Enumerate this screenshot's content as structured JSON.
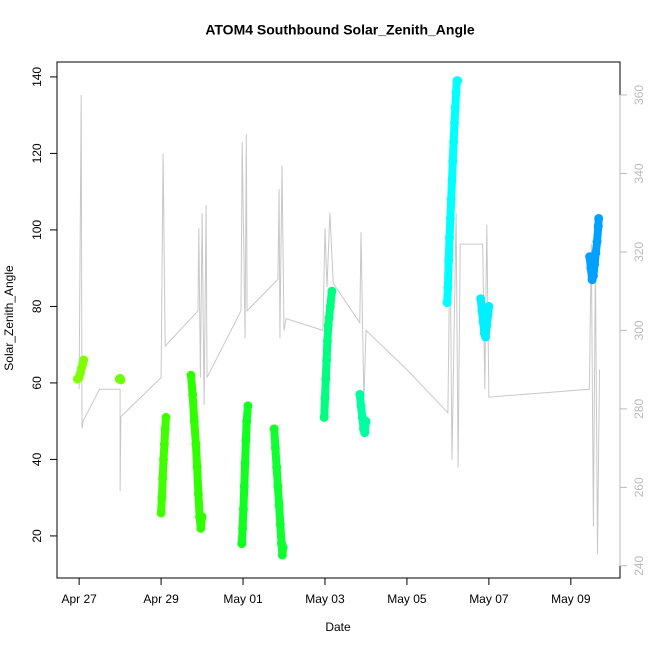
{
  "chart_data": {
    "type": "scatter",
    "title": "ATOM4 Southbound Solar_Zenith_Angle",
    "x_label": "Date",
    "y_label": "Solar_Zenith_Angle",
    "xlim": [
      -0.54,
      13.2
    ],
    "ylim": [
      9.0,
      143.9
    ],
    "y2lim": [
      236.9,
      368.4
    ],
    "xticks": [
      {
        "value": 0,
        "label": "Apr 27"
      },
      {
        "value": 2,
        "label": "Apr 29"
      },
      {
        "value": 4,
        "label": "May 01"
      },
      {
        "value": 6,
        "label": "May 03"
      },
      {
        "value": 8,
        "label": "May 05"
      },
      {
        "value": 10,
        "label": "May 07"
      },
      {
        "value": 12,
        "label": "May 09"
      }
    ],
    "yticks": [
      20,
      40,
      60,
      80,
      100,
      120,
      140
    ],
    "y2ticks": [
      240,
      260,
      280,
      300,
      320,
      340,
      360
    ],
    "y2_color": "#bbbbbb",
    "series": [
      {
        "color": "#80ff00",
        "x": [
          -0.04,
          0.0,
          0.03,
          0.06,
          0.09,
          0.11
        ],
        "values": [
          61,
          61.5,
          62.5,
          64,
          65,
          66
        ]
      },
      {
        "color": "#70ff00",
        "x": [
          0.98,
          1.0,
          1.02
        ],
        "values": [
          61,
          61.2,
          60.8
        ]
      },
      {
        "color": "#40ff00",
        "x": [
          2.0,
          2.02,
          2.04,
          2.06,
          2.08,
          2.1,
          2.12
        ],
        "values": [
          26,
          30,
          35,
          40,
          44,
          48,
          51
        ]
      },
      {
        "color": "#30ff00",
        "x": [
          2.73,
          2.77,
          2.81,
          2.85,
          2.88,
          2.91,
          2.94,
          2.97,
          3.0
        ],
        "values": [
          62,
          57,
          50,
          44,
          38,
          31,
          25,
          22,
          25
        ]
      },
      {
        "color": "#10ff20",
        "x": [
          3.97,
          3.99,
          4.01,
          4.03,
          4.05,
          4.07,
          4.09,
          4.12
        ],
        "values": [
          18,
          22,
          27,
          33,
          39,
          45,
          50,
          54
        ]
      },
      {
        "color": "#10ff30",
        "x": [
          4.76,
          4.79,
          4.82,
          4.85,
          4.88,
          4.91,
          4.94,
          4.96,
          4.98
        ],
        "values": [
          48,
          43,
          38,
          33,
          28,
          23,
          18,
          15,
          17
        ]
      },
      {
        "color": "#00ff80",
        "x": [
          5.98,
          6.0,
          6.02,
          6.04,
          6.06,
          6.08,
          6.1,
          6.13,
          6.17
        ],
        "values": [
          51,
          56,
          61,
          66,
          71,
          75,
          77,
          80,
          84
        ]
      },
      {
        "color": "#00ffa0",
        "x": [
          6.85,
          6.88,
          6.91,
          6.94,
          6.97,
          7.0
        ],
        "values": [
          57,
          54,
          51,
          48,
          47,
          50
        ]
      },
      {
        "color": "#00ffff",
        "x": [
          8.98,
          9.0,
          9.02,
          9.04,
          9.06,
          9.08,
          9.1,
          9.12,
          9.14,
          9.16,
          9.18,
          9.2,
          9.22,
          9.24
        ],
        "values": [
          81,
          85,
          92,
          98,
          103,
          108,
          113,
          118,
          123,
          128,
          132,
          136,
          139,
          139
        ]
      },
      {
        "color": "#00f0ff",
        "x": [
          9.8,
          9.83,
          9.86,
          9.89,
          9.92,
          9.95,
          9.98,
          10.0
        ],
        "values": [
          82,
          79,
          76,
          73,
          72,
          75,
          78,
          80
        ]
      },
      {
        "color": "#00a0ff",
        "x": [
          12.46,
          12.49,
          12.52,
          12.55,
          12.58,
          12.61,
          12.64,
          12.67,
          12.68
        ],
        "values": [
          93,
          90,
          87,
          88,
          91,
          94,
          97,
          101,
          103
        ]
      },
      {
        "color": "#c8c8c8",
        "axis": "y2",
        "line": true,
        "x": [
          0.0,
          0.05,
          0.07,
          0.1,
          0.5,
          1.0,
          1.0,
          1.02,
          2.0,
          2.05,
          2.1,
          2.9,
          2.92,
          2.96,
          3.0,
          3.05,
          3.1,
          3.12,
          3.95,
          3.98,
          4.05,
          4.08,
          4.1,
          4.85,
          4.88,
          4.9,
          4.95,
          5.0,
          5.05,
          5.95,
          6.0,
          6.05,
          6.12,
          6.2,
          6.85,
          6.88,
          6.95,
          7.0,
          8.0,
          9.0,
          9.05,
          9.1,
          9.2,
          9.25,
          9.3,
          9.85,
          9.9,
          9.95,
          10.0,
          12.45,
          12.5,
          12.55,
          12.6,
          12.65,
          12.7
        ],
        "values": [
          285,
          360,
          275,
          277,
          285,
          285,
          259,
          278,
          288,
          345,
          296,
          305,
          326,
          288,
          330,
          281,
          332,
          288,
          305,
          348,
          298,
          350,
          305,
          313,
          336,
          298,
          342,
          300,
          303,
          300,
          326,
          311,
          330,
          312,
          302,
          325,
          282,
          300,
          290,
          279,
          325,
          267,
          330,
          265,
          322,
          322,
          285,
          327,
          283,
          285,
          322,
          250,
          318,
          243,
          290
        ]
      }
    ]
  }
}
